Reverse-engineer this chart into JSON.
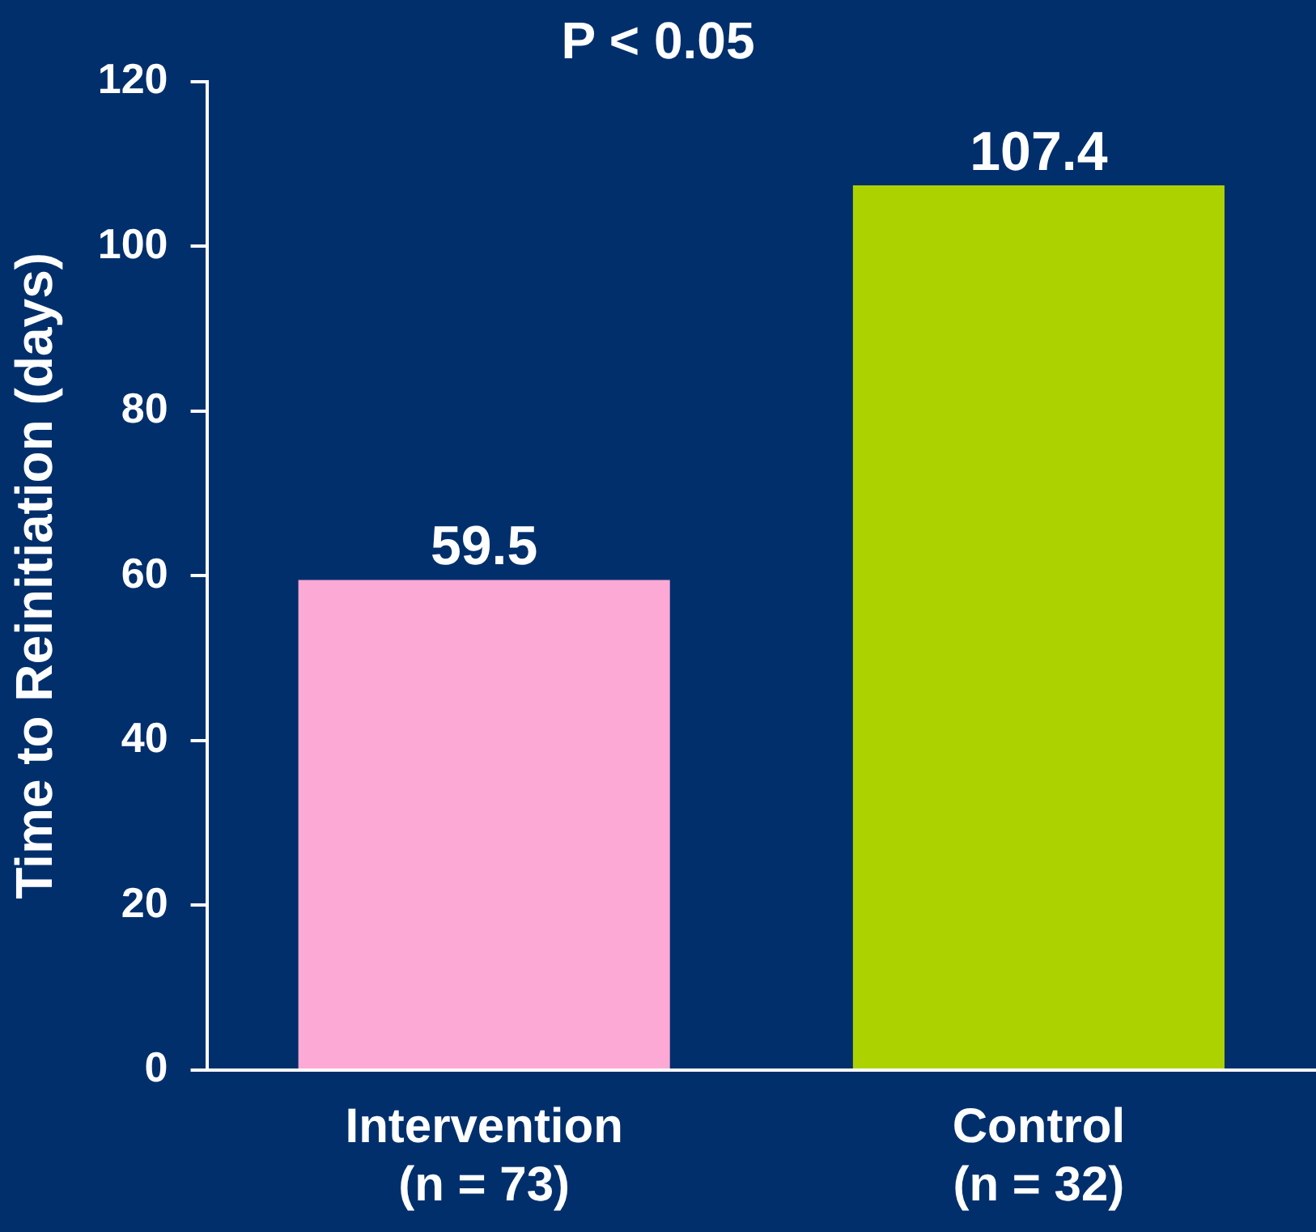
{
  "chart_data": {
    "type": "bar",
    "title": "P < 0.05",
    "ylabel": "Time to Reinitiation (days)",
    "categories": [
      "Intervention\n(n = 73)",
      "Control\n(n = 32)"
    ],
    "values": [
      59.5,
      107.4
    ],
    "colors": [
      "#fca9d5",
      "#acd300"
    ],
    "ylim": [
      0,
      120
    ],
    "yticks": [
      0,
      20,
      40,
      60,
      80,
      100,
      120
    ],
    "grid": false,
    "legend": false,
    "data_labels": true
  }
}
